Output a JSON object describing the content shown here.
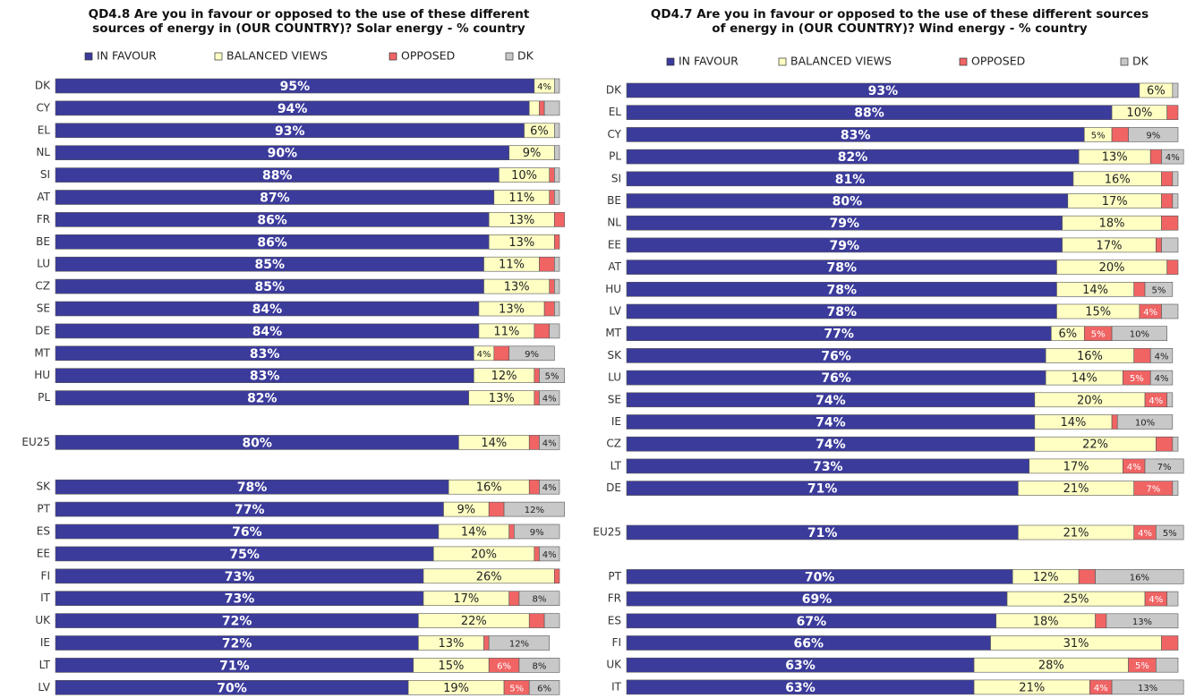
{
  "chart_data": [
    {
      "type": "stacked-bar-horizontal",
      "title": "QD4.8 Are you in favour or opposed to the use of these different sources of energy in (OUR COUNTRY)? Solar energy - % country",
      "xlim": [
        0,
        100
      ],
      "categories": [
        "DK",
        "CY",
        "EL",
        "NL",
        "SI",
        "AT",
        "FR",
        "BE",
        "LU",
        "CZ",
        "SE",
        "DE",
        "MT",
        "HU",
        "PL",
        null,
        "EU25",
        null,
        "SK",
        "PT",
        "ES",
        "EE",
        "FI",
        "IT",
        "UK",
        "IE",
        "LT",
        "LV"
      ],
      "series": [
        {
          "name": "IN FAVOUR",
          "color": "#3b3b9c",
          "values": [
            95,
            94,
            93,
            90,
            88,
            87,
            86,
            86,
            85,
            85,
            84,
            84,
            83,
            83,
            82,
            null,
            80,
            null,
            78,
            77,
            76,
            75,
            73,
            73,
            72,
            72,
            71,
            70
          ],
          "value_labels": [
            "95%",
            "94%",
            "93%",
            "90%",
            "88%",
            "87%",
            "86%",
            "86%",
            "85%",
            "85%",
            "84%",
            "84%",
            "83%",
            "83%",
            "82%",
            null,
            "80%",
            null,
            "78%",
            "77%",
            "76%",
            "75%",
            "73%",
            "73%",
            "72%",
            "72%",
            "71%",
            "70%"
          ]
        },
        {
          "name": "BALANCED VIEWS",
          "color": "#ffffc4",
          "values": [
            4,
            2,
            6,
            9,
            10,
            11,
            13,
            13,
            11,
            13,
            13,
            11,
            4,
            12,
            13,
            null,
            14,
            null,
            16,
            9,
            14,
            20,
            26,
            17,
            22,
            13,
            15,
            19
          ],
          "value_labels": [
            "4%",
            null,
            "6%",
            "9%",
            "10%",
            "11%",
            "13%",
            "13%",
            "11%",
            "13%",
            "13%",
            "11%",
            "4%",
            "12%",
            "13%",
            null,
            "14%",
            null,
            "16%",
            "9%",
            "14%",
            "20%",
            "26%",
            "17%",
            "22%",
            "13%",
            "15%",
            "19%"
          ]
        },
        {
          "name": "OPPOSED",
          "color": "#f06464",
          "values": [
            0,
            1,
            0,
            0,
            1,
            1,
            2,
            1,
            3,
            1,
            2,
            3,
            3,
            1,
            1,
            null,
            2,
            null,
            2,
            3,
            1,
            1,
            1,
            2,
            3,
            1,
            6,
            5
          ],
          "value_labels": [
            null,
            null,
            null,
            null,
            null,
            null,
            null,
            null,
            null,
            null,
            null,
            null,
            null,
            null,
            null,
            null,
            null,
            null,
            null,
            null,
            null,
            null,
            null,
            null,
            null,
            null,
            "6%",
            "5%"
          ]
        },
        {
          "name": "DK",
          "color": "#c8c8c8",
          "values": [
            1,
            3,
            1,
            1,
            1,
            1,
            0,
            0,
            1,
            1,
            1,
            2,
            9,
            5,
            4,
            null,
            4,
            null,
            4,
            12,
            9,
            4,
            0,
            8,
            3,
            12,
            8,
            6
          ],
          "value_labels": [
            null,
            null,
            null,
            null,
            null,
            null,
            null,
            null,
            null,
            null,
            null,
            null,
            "9%",
            "5%",
            "4%",
            null,
            "4%",
            null,
            "4%",
            "12%",
            "9%",
            "4%",
            null,
            "8%",
            null,
            "12%",
            "8%",
            "6%"
          ]
        }
      ]
    },
    {
      "type": "stacked-bar-horizontal",
      "title": "QD4.7 Are you in favour or opposed to the use of these different sources of energy in (OUR COUNTRY)? Wind energy - % country",
      "xlim": [
        0,
        100
      ],
      "categories": [
        "DK",
        "EL",
        "CY",
        "PL",
        "SI",
        "BE",
        "NL",
        "EE",
        "AT",
        "HU",
        "LV",
        "MT",
        "SK",
        "LU",
        "SE",
        "IE",
        "CZ",
        "LT",
        "DE",
        null,
        "EU25",
        null,
        "PT",
        "FR",
        "ES",
        "FI",
        "UK",
        "IT"
      ],
      "series": [
        {
          "name": "IN FAVOUR",
          "color": "#3b3b9c",
          "values": [
            93,
            88,
            83,
            82,
            81,
            80,
            79,
            79,
            78,
            78,
            78,
            77,
            76,
            76,
            74,
            74,
            74,
            73,
            71,
            null,
            71,
            null,
            70,
            69,
            67,
            66,
            63,
            63
          ],
          "value_labels": [
            "93%",
            "88%",
            "83%",
            "82%",
            "81%",
            "80%",
            "79%",
            "79%",
            "78%",
            "78%",
            "78%",
            "77%",
            "76%",
            "76%",
            "74%",
            "74%",
            "74%",
            "73%",
            "71%",
            null,
            "71%",
            null,
            "70%",
            "69%",
            "67%",
            "66%",
            "63%",
            "63%"
          ]
        },
        {
          "name": "BALANCED VIEWS",
          "color": "#ffffc4",
          "values": [
            6,
            10,
            5,
            13,
            16,
            17,
            18,
            17,
            20,
            14,
            15,
            6,
            16,
            14,
            20,
            14,
            22,
            17,
            21,
            null,
            21,
            null,
            12,
            25,
            18,
            31,
            28,
            21
          ],
          "value_labels": [
            "6%",
            "10%",
            "5%",
            "13%",
            "16%",
            "17%",
            "18%",
            "17%",
            "20%",
            "14%",
            "15%",
            "6%",
            "16%",
            "14%",
            "20%",
            "14%",
            "22%",
            "17%",
            "21%",
            null,
            "21%",
            null,
            "12%",
            "25%",
            "18%",
            "31%",
            "28%",
            "21%"
          ]
        },
        {
          "name": "OPPOSED",
          "color": "#f06464",
          "values": [
            0,
            2,
            3,
            2,
            2,
            2,
            3,
            1,
            2,
            2,
            4,
            5,
            3,
            5,
            4,
            1,
            3,
            4,
            7,
            null,
            4,
            null,
            3,
            4,
            2,
            3,
            5,
            4
          ],
          "value_labels": [
            null,
            null,
            null,
            null,
            null,
            null,
            null,
            null,
            null,
            null,
            "4%",
            "5%",
            null,
            "5%",
            "4%",
            null,
            null,
            "4%",
            "7%",
            null,
            "4%",
            null,
            null,
            "4%",
            null,
            null,
            "5%",
            "4%"
          ]
        },
        {
          "name": "DK",
          "color": "#c8c8c8",
          "values": [
            1,
            0,
            9,
            4,
            1,
            1,
            0,
            3,
            0,
            5,
            3,
            10,
            4,
            4,
            1,
            10,
            1,
            7,
            1,
            null,
            5,
            null,
            16,
            2,
            13,
            0,
            4,
            13
          ],
          "value_labels": [
            null,
            null,
            "9%",
            "4%",
            null,
            null,
            null,
            null,
            null,
            "5%",
            null,
            "10%",
            "4%",
            "4%",
            null,
            "10%",
            null,
            "7%",
            null,
            null,
            "5%",
            null,
            "16%",
            null,
            "13%",
            null,
            null,
            "13%"
          ]
        }
      ]
    }
  ]
}
